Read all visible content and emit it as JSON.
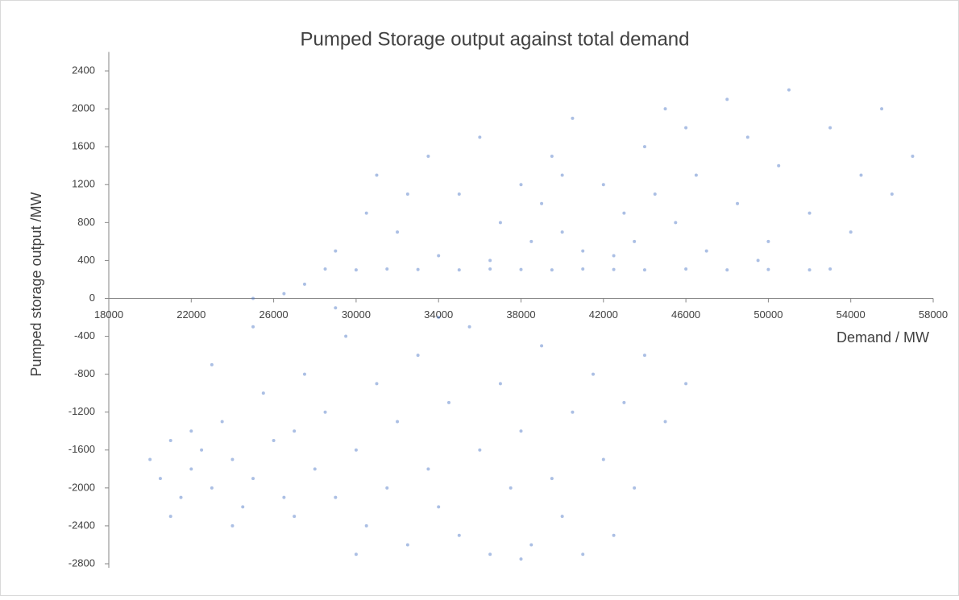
{
  "chart_data": {
    "type": "scatter",
    "title": "Pumped Storage output against total demand",
    "x_label": "Demand / MW",
    "y_label": "Pumped storage output /MW",
    "xlim": [
      18000,
      58000
    ],
    "xticks": [
      18000,
      22000,
      26000,
      30000,
      34000,
      38000,
      42000,
      46000,
      50000,
      54000,
      58000
    ],
    "ylim": [
      -2800,
      2600
    ],
    "yticks": [
      -2800,
      -2400,
      -2000,
      -1600,
      -1200,
      -800,
      -400,
      0,
      400,
      800,
      1200,
      1600,
      2000,
      2400
    ],
    "grid": false,
    "x": [
      28500,
      30000,
      31500,
      33000,
      35000,
      36500,
      38000,
      39500,
      41000,
      42500,
      44000,
      46000,
      48000,
      50000,
      52000,
      53000,
      29000,
      30500,
      31000,
      32000,
      33500,
      34000,
      35000,
      36000,
      37000,
      38000,
      38500,
      39000,
      39500,
      40000,
      40500,
      41000,
      42000,
      43000,
      43500,
      44000,
      45000,
      45500,
      46500,
      47000,
      48000,
      48500,
      49000,
      50000,
      50500,
      51000,
      52000,
      53000,
      54000,
      54500,
      55500,
      56000,
      57000,
      32500,
      36500,
      40000,
      42500,
      46000,
      49500,
      44500,
      25000,
      26500,
      27500,
      29000,
      20000,
      20500,
      21000,
      21500,
      22000,
      22500,
      23000,
      23500,
      24000,
      24500,
      25000,
      25500,
      26000,
      26500,
      27000,
      27500,
      28000,
      28500,
      29000,
      29500,
      30000,
      30500,
      31000,
      31500,
      32000,
      32500,
      33000,
      33500,
      34000,
      34500,
      35000,
      35500,
      36000,
      36500,
      37000,
      37500,
      38000,
      38500,
      39000,
      39500,
      40000,
      40500,
      41000,
      41500,
      42000,
      42500,
      43000,
      43500,
      44000,
      45000,
      46000,
      21000,
      23000,
      25000,
      27000,
      24000,
      22000,
      30000,
      34000,
      38000
    ],
    "series": [
      {
        "color": "#4472c4",
        "values": [
          310,
          300,
          310,
          305,
          300,
          310,
          305,
          300,
          310,
          305,
          300,
          310,
          300,
          305,
          300,
          310,
          500,
          900,
          1300,
          700,
          1500,
          450,
          1100,
          1700,
          800,
          1200,
          600,
          1000,
          1500,
          700,
          1900,
          500,
          1200,
          900,
          600,
          1600,
          2000,
          800,
          1300,
          500,
          2100,
          1000,
          1700,
          600,
          1400,
          2200,
          900,
          1800,
          700,
          1300,
          2000,
          1100,
          1500,
          1100,
          400,
          1300,
          450,
          1800,
          400,
          1100,
          0,
          50,
          150,
          -100,
          -1700,
          -1900,
          -1500,
          -2100,
          -1800,
          -1600,
          -2000,
          -1300,
          -1700,
          -2200,
          -1900,
          -1000,
          -1500,
          -2100,
          -2300,
          -800,
          -1800,
          -1200,
          -2100,
          -400,
          -1600,
          -2400,
          -900,
          -2000,
          -1300,
          -2600,
          -600,
          -1800,
          -2200,
          -1100,
          -2500,
          -300,
          -1600,
          -2700,
          -900,
          -2000,
          -1400,
          -2600,
          -500,
          -1900,
          -2300,
          -1200,
          -2700,
          -800,
          -1700,
          -2500,
          -1100,
          -2000,
          -600,
          -1300,
          -900,
          -2300,
          -700,
          -300,
          -1400,
          -2400,
          -1400,
          -2700,
          -200,
          -2750
        ]
      }
    ]
  }
}
